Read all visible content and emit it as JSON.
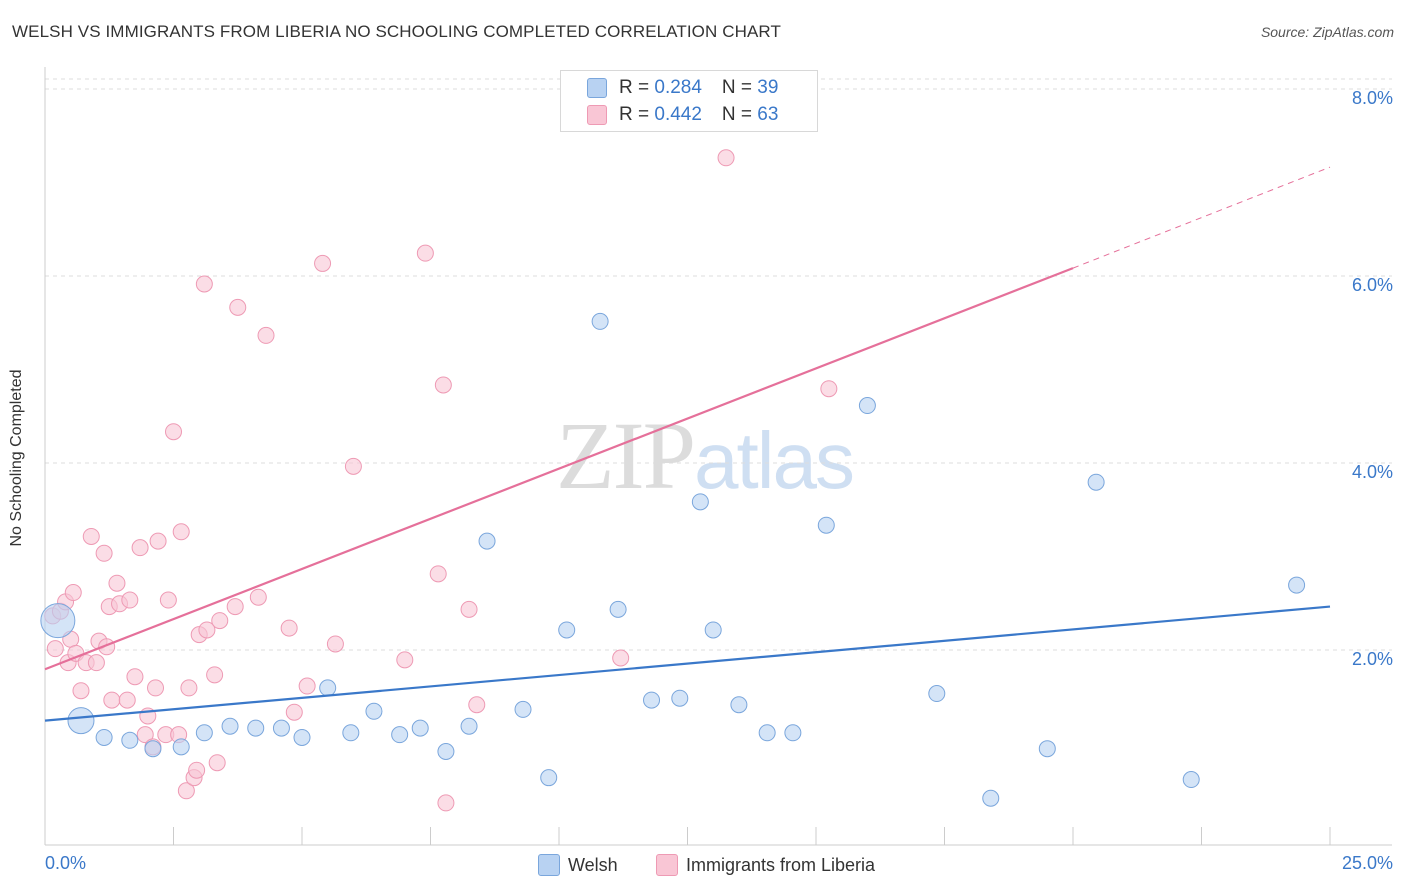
{
  "title": "WELSH VS IMMIGRANTS FROM LIBERIA NO SCHOOLING COMPLETED CORRELATION CHART",
  "source": "Source: ZipAtlas.com",
  "watermark": {
    "part1": "ZIP",
    "part2": "atlas"
  },
  "legend_top": {
    "welsh": {
      "r_label": "R = ",
      "r_value": "0.284",
      "n_label": "N = ",
      "n_value": "39"
    },
    "liberia": {
      "r_label": "R = ",
      "r_value": "0.442",
      "n_label": "N = ",
      "n_value": "63"
    }
  },
  "legend_bottom": {
    "welsh": "Welsh",
    "liberia": "Immigrants from Liberia"
  },
  "colors": {
    "welsh_fill": "#b8d2f2",
    "welsh_stroke": "#7aa6dc",
    "welsh_line": "#3a78c9",
    "liberia_fill": "#f9c6d5",
    "liberia_stroke": "#ee9ab4",
    "liberia_line": "#e5709a",
    "tick_label": "#3a78c9",
    "grid": "#dddddd"
  },
  "chart_data": {
    "type": "scatter",
    "title": "WELSH VS IMMIGRANTS FROM LIBERIA NO SCHOOLING COMPLETED CORRELATION CHART",
    "xlabel": "",
    "ylabel": "No Schooling Completed",
    "xlim": [
      0,
      25
    ],
    "ylim": [
      0,
      8.0
    ],
    "x_tick_labels": [
      "0.0%",
      "25.0%"
    ],
    "y_ticks": [
      2.0,
      4.0,
      6.0,
      8.0
    ],
    "y_tick_labels": [
      "2.0%",
      "4.0%",
      "6.0%",
      "8.0%"
    ],
    "grid": "horizontal dashed",
    "legend_position": "top-center",
    "series": [
      {
        "name": "Welsh",
        "trend": {
          "x": [
            0,
            25
          ],
          "y": [
            1.33,
            2.55
          ]
        },
        "points": [
          {
            "x": 0.25,
            "y": 2.4,
            "s": "L"
          },
          {
            "x": 0.7,
            "y": 1.33,
            "s": "M"
          },
          {
            "x": 1.15,
            "y": 1.15
          },
          {
            "x": 1.65,
            "y": 1.12
          },
          {
            "x": 2.1,
            "y": 1.03
          },
          {
            "x": 2.65,
            "y": 1.05
          },
          {
            "x": 3.1,
            "y": 1.2
          },
          {
            "x": 3.6,
            "y": 1.27
          },
          {
            "x": 4.1,
            "y": 1.25
          },
          {
            "x": 4.6,
            "y": 1.25
          },
          {
            "x": 5.0,
            "y": 1.15
          },
          {
            "x": 5.5,
            "y": 1.68
          },
          {
            "x": 5.95,
            "y": 1.2
          },
          {
            "x": 6.4,
            "y": 1.43
          },
          {
            "x": 6.9,
            "y": 1.18
          },
          {
            "x": 7.3,
            "y": 1.25
          },
          {
            "x": 7.8,
            "y": 1.0
          },
          {
            "x": 8.25,
            "y": 1.27
          },
          {
            "x": 8.6,
            "y": 3.25
          },
          {
            "x": 9.3,
            "y": 1.45
          },
          {
            "x": 9.8,
            "y": 0.72
          },
          {
            "x": 10.15,
            "y": 2.3
          },
          {
            "x": 10.8,
            "y": 5.6
          },
          {
            "x": 11.15,
            "y": 2.52
          },
          {
            "x": 11.8,
            "y": 1.55
          },
          {
            "x": 12.35,
            "y": 1.57
          },
          {
            "x": 12.75,
            "y": 3.67
          },
          {
            "x": 13.0,
            "y": 2.3
          },
          {
            "x": 13.5,
            "y": 1.5
          },
          {
            "x": 14.05,
            "y": 1.2
          },
          {
            "x": 14.55,
            "y": 1.2
          },
          {
            "x": 15.2,
            "y": 3.42
          },
          {
            "x": 16.0,
            "y": 4.7
          },
          {
            "x": 17.35,
            "y": 1.62
          },
          {
            "x": 18.4,
            "y": 0.5
          },
          {
            "x": 19.5,
            "y": 1.03
          },
          {
            "x": 20.45,
            "y": 3.88
          },
          {
            "x": 22.3,
            "y": 0.7
          },
          {
            "x": 24.35,
            "y": 2.78
          }
        ]
      },
      {
        "name": "Immigrants from Liberia",
        "trend": {
          "x": [
            0,
            20
          ],
          "y": [
            1.88,
            6.17
          ]
        },
        "trend_dashed": {
          "x": [
            20,
            25
          ],
          "y": [
            6.17,
            7.25
          ]
        },
        "points": [
          {
            "x": 0.15,
            "y": 2.45
          },
          {
            "x": 0.2,
            "y": 2.1
          },
          {
            "x": 0.3,
            "y": 2.5
          },
          {
            "x": 0.4,
            "y": 2.6
          },
          {
            "x": 0.5,
            "y": 2.2
          },
          {
            "x": 0.45,
            "y": 1.95
          },
          {
            "x": 0.55,
            "y": 2.7
          },
          {
            "x": 0.6,
            "y": 2.05
          },
          {
            "x": 0.7,
            "y": 1.65
          },
          {
            "x": 0.8,
            "y": 1.95
          },
          {
            "x": 0.9,
            "y": 3.3
          },
          {
            "x": 1.0,
            "y": 1.95
          },
          {
            "x": 1.05,
            "y": 2.18
          },
          {
            "x": 1.15,
            "y": 3.12
          },
          {
            "x": 1.2,
            "y": 2.12
          },
          {
            "x": 1.25,
            "y": 2.55
          },
          {
            "x": 1.3,
            "y": 1.55
          },
          {
            "x": 1.4,
            "y": 2.8
          },
          {
            "x": 1.45,
            "y": 2.58
          },
          {
            "x": 1.6,
            "y": 1.55
          },
          {
            "x": 1.65,
            "y": 2.62
          },
          {
            "x": 1.75,
            "y": 1.8
          },
          {
            "x": 1.85,
            "y": 3.18
          },
          {
            "x": 1.95,
            "y": 1.18
          },
          {
            "x": 2.0,
            "y": 1.38
          },
          {
            "x": 2.1,
            "y": 1.05
          },
          {
            "x": 2.15,
            "y": 1.68
          },
          {
            "x": 2.2,
            "y": 3.25
          },
          {
            "x": 2.35,
            "y": 1.18
          },
          {
            "x": 2.4,
            "y": 2.62
          },
          {
            "x": 2.5,
            "y": 4.42
          },
          {
            "x": 2.6,
            "y": 1.18
          },
          {
            "x": 2.65,
            "y": 3.35
          },
          {
            "x": 2.75,
            "y": 0.58
          },
          {
            "x": 2.8,
            "y": 1.68
          },
          {
            "x": 2.9,
            "y": 0.72
          },
          {
            "x": 2.95,
            "y": 0.8
          },
          {
            "x": 3.0,
            "y": 2.25
          },
          {
            "x": 3.1,
            "y": 6.0
          },
          {
            "x": 3.15,
            "y": 2.3
          },
          {
            "x": 3.3,
            "y": 1.82
          },
          {
            "x": 3.35,
            "y": 0.88
          },
          {
            "x": 3.4,
            "y": 2.4
          },
          {
            "x": 3.7,
            "y": 2.55
          },
          {
            "x": 3.75,
            "y": 5.75
          },
          {
            "x": 4.15,
            "y": 2.65
          },
          {
            "x": 4.3,
            "y": 5.45
          },
          {
            "x": 4.75,
            "y": 2.32
          },
          {
            "x": 4.85,
            "y": 1.42
          },
          {
            "x": 5.1,
            "y": 1.7
          },
          {
            "x": 5.4,
            "y": 6.22
          },
          {
            "x": 5.65,
            "y": 2.15
          },
          {
            "x": 6.0,
            "y": 4.05
          },
          {
            "x": 7.0,
            "y": 1.98
          },
          {
            "x": 7.4,
            "y": 6.33
          },
          {
            "x": 7.65,
            "y": 2.9
          },
          {
            "x": 7.75,
            "y": 4.92
          },
          {
            "x": 7.8,
            "y": 0.45
          },
          {
            "x": 8.25,
            "y": 2.52
          },
          {
            "x": 8.4,
            "y": 1.5
          },
          {
            "x": 11.2,
            "y": 2.0
          },
          {
            "x": 13.25,
            "y": 7.35
          },
          {
            "x": 15.25,
            "y": 4.88
          }
        ]
      }
    ]
  }
}
